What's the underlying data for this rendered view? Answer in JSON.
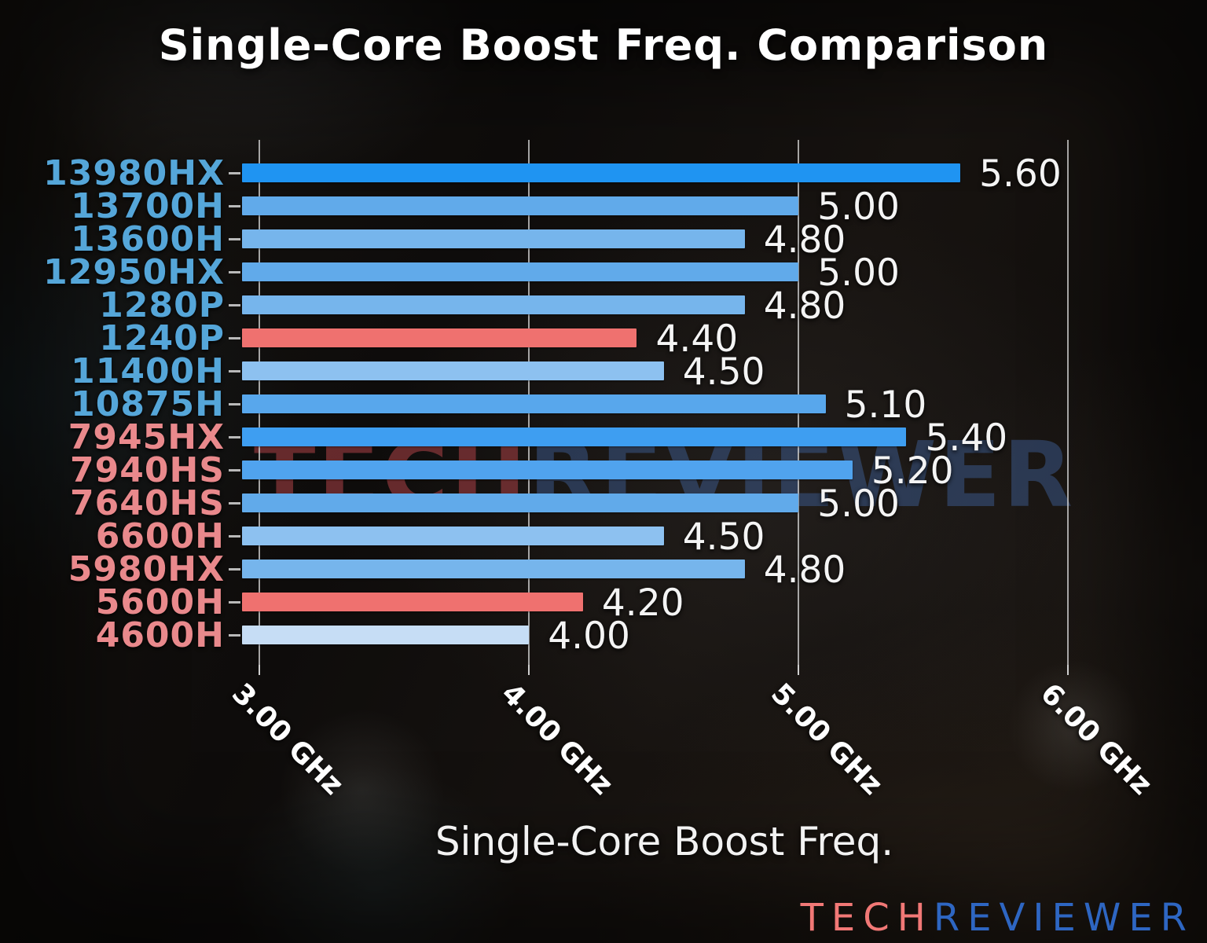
{
  "title": "Single-Core Boost Freq. Comparison",
  "watermark": {
    "tech": "TECH",
    "reviewer": "REVIEWER"
  },
  "logo": {
    "tech": "TECH",
    "reviewer": "REVIEWER"
  },
  "colors": {
    "intel_label": "#55a6d9",
    "amd_label": "#e9898c",
    "highlight_bar": "#ef716f",
    "logo_tech": "#f17876",
    "logo_reviewer": "#2e66c2",
    "watermark_tech": "rgba(160,62,66,0.60)",
    "watermark_reviewer": "rgba(62,96,152,0.48)",
    "value_text": "#f4f4f4",
    "tick_text": "#ffffff"
  },
  "chart_data": {
    "type": "bar",
    "orientation": "horizontal",
    "title": "Single-Core Boost Freq. Comparison",
    "xlabel": "Single-Core Boost Freq.",
    "ylabel": "",
    "xlim": [
      2.935,
      6.28
    ],
    "grid": true,
    "legend": false,
    "x_ticks": [
      {
        "value": 3.0,
        "label": "3.00 GHz"
      },
      {
        "value": 4.0,
        "label": "4.00 GHz"
      },
      {
        "value": 5.0,
        "label": "5.00 GHz"
      },
      {
        "value": 6.0,
        "label": "6.00 GHz"
      }
    ],
    "categories": [
      "13980HX",
      "13700H",
      "13600H",
      "12950HX",
      "1280P",
      "1240P",
      "11400H",
      "10875H",
      "7945HX",
      "7940HS",
      "7640HS",
      "6600H",
      "5980HX",
      "5600H",
      "4600H"
    ],
    "values": [
      5.6,
      5.0,
      4.8,
      5.0,
      4.8,
      4.4,
      4.5,
      5.1,
      5.4,
      5.2,
      5.0,
      4.5,
      4.8,
      4.2,
      4.0
    ],
    "bars": [
      {
        "label": "13980HX",
        "value": 5.6,
        "value_label": "5.60",
        "vendor": "intel",
        "color": "#1f94f2",
        "highlight": false
      },
      {
        "label": "13700H",
        "value": 5.0,
        "value_label": "5.00",
        "vendor": "intel",
        "color": "#61aaea",
        "highlight": false
      },
      {
        "label": "13600H",
        "value": 4.8,
        "value_label": "4.80",
        "vendor": "intel",
        "color": "#76b5ec",
        "highlight": false
      },
      {
        "label": "12950HX",
        "value": 5.0,
        "value_label": "5.00",
        "vendor": "intel",
        "color": "#61aaea",
        "highlight": false
      },
      {
        "label": "1280P",
        "value": 4.8,
        "value_label": "4.80",
        "vendor": "intel",
        "color": "#76b5ec",
        "highlight": false
      },
      {
        "label": "1240P",
        "value": 4.4,
        "value_label": "4.40",
        "vendor": "intel",
        "color": "#ef716f",
        "highlight": true
      },
      {
        "label": "11400H",
        "value": 4.5,
        "value_label": "4.50",
        "vendor": "intel",
        "color": "#8dc1f0",
        "highlight": false
      },
      {
        "label": "10875H",
        "value": 5.1,
        "value_label": "5.10",
        "vendor": "intel",
        "color": "#58a7ec",
        "highlight": false
      },
      {
        "label": "7945HX",
        "value": 5.4,
        "value_label": "5.40",
        "vendor": "amd",
        "color": "#3e9ef1",
        "highlight": false
      },
      {
        "label": "7940HS",
        "value": 5.2,
        "value_label": "5.20",
        "vendor": "amd",
        "color": "#50a3ee",
        "highlight": false
      },
      {
        "label": "7640HS",
        "value": 5.0,
        "value_label": "5.00",
        "vendor": "amd",
        "color": "#61aaea",
        "highlight": false
      },
      {
        "label": "6600H",
        "value": 4.5,
        "value_label": "4.50",
        "vendor": "amd",
        "color": "#8dc1f0",
        "highlight": false
      },
      {
        "label": "5980HX",
        "value": 4.8,
        "value_label": "4.80",
        "vendor": "amd",
        "color": "#76b5ec",
        "highlight": false
      },
      {
        "label": "5600H",
        "value": 4.2,
        "value_label": "4.20",
        "vendor": "amd",
        "color": "#ef716f",
        "highlight": true
      },
      {
        "label": "4600H",
        "value": 4.0,
        "value_label": "4.00",
        "vendor": "amd",
        "color": "#c6ddf5",
        "highlight": false
      }
    ]
  }
}
